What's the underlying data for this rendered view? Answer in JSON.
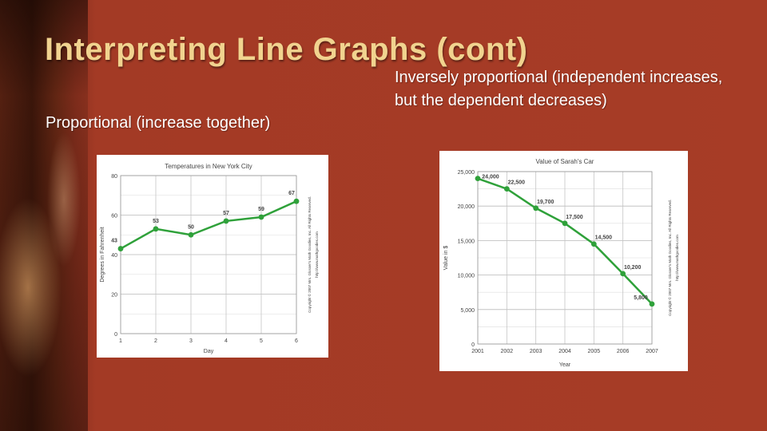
{
  "slide": {
    "title": "Interpreting Line Graphs (cont)",
    "left_caption": "Proportional (increase together)",
    "right_caption": "Inversely proportional (independent increases, but the dependent decreases)",
    "colors": {
      "background": "#a33a25",
      "title": "#f1d38f",
      "caption": "#ffffff",
      "line": "#2fa13a"
    }
  },
  "chart_data": [
    {
      "type": "line",
      "title": "Temperatures in New York City",
      "xlabel": "Day",
      "ylabel": "Degrees in Fahrenheit",
      "x": [
        1,
        2,
        3,
        4,
        5,
        6
      ],
      "x_ticks": [
        "1",
        "2",
        "3",
        "4",
        "5",
        "6"
      ],
      "values": [
        43,
        53,
        50,
        57,
        59,
        67
      ],
      "data_labels": [
        "43",
        "53",
        "50",
        "57",
        "59",
        "67"
      ],
      "y_ticks": [
        "0",
        "20",
        "40",
        "60",
        "80"
      ],
      "ylim": [
        0,
        80
      ],
      "grid": true,
      "copyright": "Copyright © 2007 Mrs. Glosser's Math Goodies, Inc. All Rights Reserved. http://www.mathgoodies.com"
    },
    {
      "type": "line",
      "title": "Value of Sarah's Car",
      "xlabel": "Year",
      "ylabel": "Value in $",
      "x": [
        2001,
        2002,
        2003,
        2004,
        2005,
        2006,
        2007
      ],
      "x_ticks": [
        "2001",
        "2002",
        "2003",
        "2004",
        "2005",
        "2006",
        "2007"
      ],
      "values": [
        24000,
        22500,
        19700,
        17500,
        14500,
        10200,
        5800
      ],
      "data_labels": [
        "24,000",
        "22,500",
        "19,700",
        "17,500",
        "14,500",
        "10,200",
        "5,800"
      ],
      "y_ticks": [
        "0",
        "5,000",
        "10,000",
        "15,000",
        "20,000",
        "25,000"
      ],
      "ylim": [
        0,
        25000
      ],
      "grid": true,
      "copyright": "Copyright © 2007 Mrs. Glosser's Math Goodies, Inc. All Rights Reserved. http://www.mathgoodies.com"
    }
  ]
}
